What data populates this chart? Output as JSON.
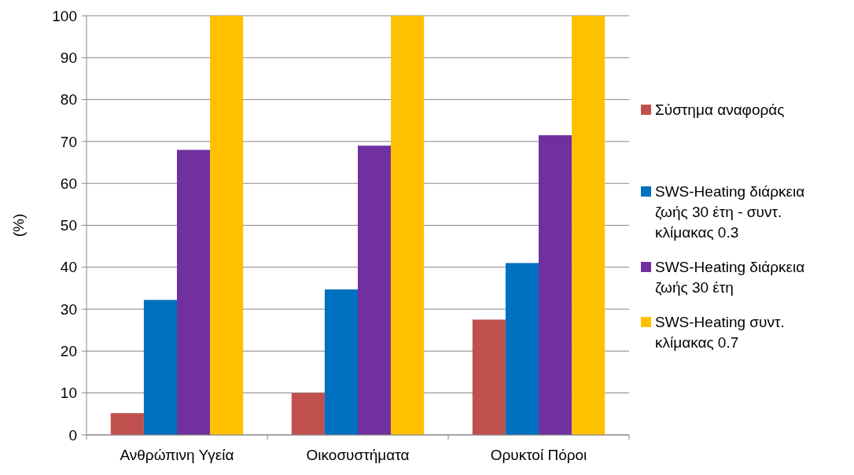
{
  "chart_data": {
    "type": "bar",
    "ylabel": "(%)",
    "categories": [
      "Ανθρώπινη Υγεία",
      "Οικοσυστήματα",
      "Ορυκτοί Πόροι"
    ],
    "series": [
      {
        "name": "Σύστημα αναφοράς",
        "color": "#c0504d",
        "values": [
          5.2,
          10,
          27.5
        ]
      },
      {
        "name": "SWS-Heating διάρκεια ζωής 30 έτη - συντ. κλίμακας 0.3",
        "color": "#0070c0",
        "values": [
          32.2,
          34.7,
          41
        ]
      },
      {
        "name": "SWS-Heating διάρκεια ζωής 30 έτη",
        "color": "#7030a0",
        "values": [
          68,
          69,
          71.5
        ]
      },
      {
        "name": "SWS-Heating συντ. κλίμακας 0.7",
        "color": "#ffc000",
        "values": [
          100,
          100,
          100
        ]
      }
    ],
    "ylim": [
      0,
      100
    ],
    "yticks": [
      0,
      10,
      20,
      30,
      40,
      50,
      60,
      70,
      80,
      90,
      100
    ],
    "grid": "y",
    "legend": "right"
  }
}
